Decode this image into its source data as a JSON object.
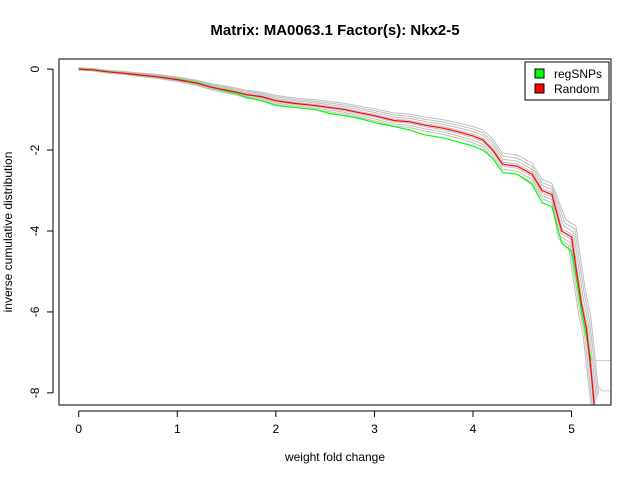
{
  "chart_data": {
    "type": "line",
    "title": "Matrix: MA0063.1 Factor(s): Nkx2-5",
    "xlabel": "weight fold change",
    "ylabel": "inverse cumulative distribution",
    "xlim": [
      -0.2,
      5.4
    ],
    "ylim": [
      -8.3,
      0.25
    ],
    "x_ticks": [
      0,
      1,
      2,
      3,
      4,
      5
    ],
    "y_ticks": [
      0,
      -2,
      -4,
      -6,
      -8
    ],
    "grid": false,
    "legend_position": "top-right",
    "legend": [
      {
        "name": "regSNPs",
        "color": "#00ff00"
      },
      {
        "name": "Random",
        "color": "#ff0000"
      }
    ],
    "series": [
      {
        "name": "regSNPs",
        "color": "#00ff00",
        "points": [
          [
            0,
            0
          ],
          [
            0.15,
            -0.02
          ],
          [
            0.3,
            -0.06
          ],
          [
            0.45,
            -0.1
          ],
          [
            0.6,
            -0.14
          ],
          [
            0.8,
            -0.19
          ],
          [
            1.0,
            -0.25
          ],
          [
            1.2,
            -0.33
          ],
          [
            1.35,
            -0.45
          ],
          [
            1.5,
            -0.55
          ],
          [
            1.6,
            -0.6
          ],
          [
            1.7,
            -0.7
          ],
          [
            1.85,
            -0.78
          ],
          [
            2.0,
            -0.9
          ],
          [
            2.2,
            -0.95
          ],
          [
            2.4,
            -1.0
          ],
          [
            2.55,
            -1.1
          ],
          [
            2.7,
            -1.15
          ],
          [
            2.85,
            -1.22
          ],
          [
            3.0,
            -1.32
          ],
          [
            3.2,
            -1.42
          ],
          [
            3.35,
            -1.5
          ],
          [
            3.5,
            -1.62
          ],
          [
            3.7,
            -1.7
          ],
          [
            3.85,
            -1.8
          ],
          [
            4.0,
            -1.9
          ],
          [
            4.1,
            -2.0
          ],
          [
            4.2,
            -2.2
          ],
          [
            4.3,
            -2.55
          ],
          [
            4.45,
            -2.6
          ],
          [
            4.6,
            -2.85
          ],
          [
            4.7,
            -3.3
          ],
          [
            4.8,
            -3.4
          ],
          [
            4.9,
            -4.3
          ],
          [
            5.0,
            -4.5
          ],
          [
            5.05,
            -5.2
          ],
          [
            5.1,
            -6.0
          ],
          [
            5.15,
            -6.6
          ],
          [
            5.2,
            -7.2
          ]
        ]
      },
      {
        "name": "Random",
        "color": "#ff0000",
        "points": [
          [
            0,
            0
          ],
          [
            0.15,
            -0.02
          ],
          [
            0.3,
            -0.07
          ],
          [
            0.45,
            -0.1
          ],
          [
            0.6,
            -0.14
          ],
          [
            0.8,
            -0.19
          ],
          [
            1.0,
            -0.26
          ],
          [
            1.2,
            -0.35
          ],
          [
            1.35,
            -0.45
          ],
          [
            1.5,
            -0.52
          ],
          [
            1.6,
            -0.57
          ],
          [
            1.7,
            -0.63
          ],
          [
            1.85,
            -0.68
          ],
          [
            2.0,
            -0.78
          ],
          [
            2.2,
            -0.85
          ],
          [
            2.4,
            -0.9
          ],
          [
            2.55,
            -0.95
          ],
          [
            2.7,
            -1.0
          ],
          [
            2.85,
            -1.08
          ],
          [
            3.0,
            -1.15
          ],
          [
            3.2,
            -1.27
          ],
          [
            3.35,
            -1.3
          ],
          [
            3.5,
            -1.38
          ],
          [
            3.7,
            -1.46
          ],
          [
            3.85,
            -1.55
          ],
          [
            4.0,
            -1.65
          ],
          [
            4.1,
            -1.75
          ],
          [
            4.2,
            -2.0
          ],
          [
            4.3,
            -2.35
          ],
          [
            4.45,
            -2.4
          ],
          [
            4.6,
            -2.6
          ],
          [
            4.7,
            -3.0
          ],
          [
            4.8,
            -3.1
          ],
          [
            4.9,
            -4.0
          ],
          [
            5.0,
            -4.15
          ],
          [
            5.05,
            -5.0
          ],
          [
            5.1,
            -5.8
          ],
          [
            5.15,
            -6.4
          ],
          [
            5.2,
            -7.5
          ],
          [
            5.23,
            -8.3
          ]
        ]
      }
    ],
    "background_band_color": "#bebebe"
  }
}
